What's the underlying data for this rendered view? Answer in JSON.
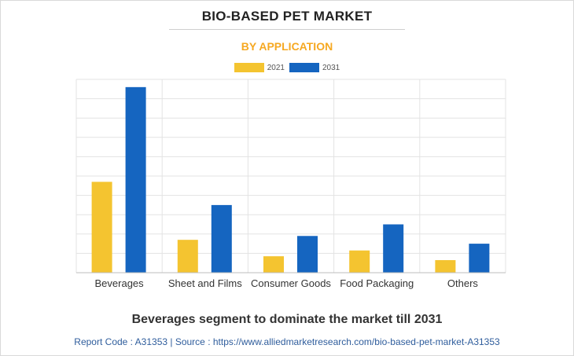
{
  "title": "BIO-BASED PET MARKET",
  "subtitle": "BY APPLICATION",
  "caption": "Beverages segment to dominate the market till 2031",
  "footer": "Report Code : A31353  |  Source : https://www.alliedmarketresearch.com/bio-based-pet-market-A31353",
  "colors": {
    "subtitle": "#f6a821",
    "series_2021": "#f4c430",
    "series_2031": "#1565c0",
    "grid": "#e3e3e3",
    "axis": "#bdbdbd"
  },
  "chart_data": {
    "type": "bar",
    "title": "BIO-BASED PET MARKET",
    "subtitle": "BY APPLICATION",
    "xlabel": "",
    "ylabel": "",
    "categories": [
      "Beverages",
      "Sheet and Films",
      "Consumer Goods",
      "Food Packaging",
      "Others"
    ],
    "series": [
      {
        "name": "2021",
        "values": [
          4.7,
          1.7,
          0.85,
          1.15,
          0.65
        ]
      },
      {
        "name": "2031",
        "values": [
          9.6,
          3.5,
          1.9,
          2.5,
          1.5
        ]
      }
    ],
    "ylim": [
      0,
      10
    ],
    "grid": true,
    "y_tick_labels_shown": false,
    "legend_position": "top-center"
  }
}
